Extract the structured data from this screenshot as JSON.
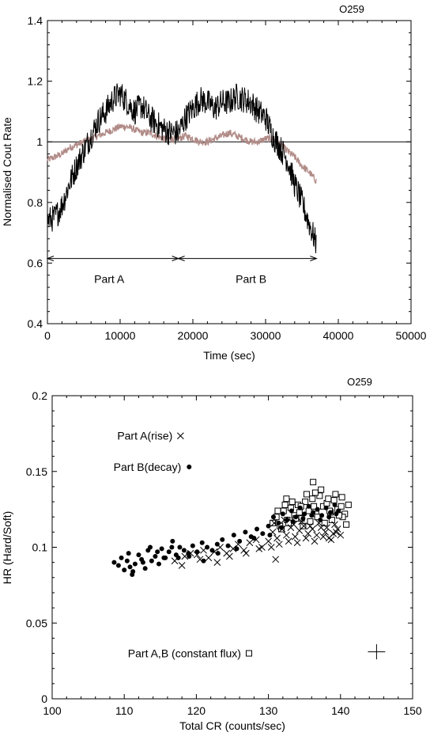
{
  "chart_data": [
    {
      "type": "line",
      "label": "O259",
      "xlabel": "Time (sec)",
      "ylabel": "Normalised Cout Rate",
      "xlim": [
        0,
        50000
      ],
      "ylim": [
        0.4,
        1.4
      ],
      "xticks": [
        0,
        10000,
        20000,
        30000,
        40000,
        50000
      ],
      "yticks": [
        0.4,
        0.6,
        0.8,
        1,
        1.2,
        1.4
      ],
      "xtick_labels": [
        "0",
        "10000",
        "20000",
        "30000",
        "40000",
        "50000"
      ],
      "ytick_labels": [
        "0.4",
        "0.6",
        "0.8",
        "1",
        "1.2",
        "1.4"
      ],
      "reference_line": 1,
      "annotations": [
        {
          "text": "Part A",
          "x": 8500,
          "y": 0.535,
          "arrow_from": 0,
          "arrow_to": 18000,
          "arrow_y": 0.615
        },
        {
          "text": "Part B",
          "x": 28000,
          "y": 0.535,
          "arrow_from": 18000,
          "arrow_to": 37000,
          "arrow_y": 0.615
        }
      ],
      "series": [
        {
          "color": "#000000",
          "x": [
            0,
            1000,
            2000,
            3000,
            4000,
            5000,
            6000,
            7000,
            8000,
            9000,
            10000,
            11000,
            12000,
            13000,
            14000,
            15000,
            16000,
            17000,
            18000,
            19000,
            20000,
            21000,
            22000,
            23000,
            24000,
            25000,
            26000,
            27000,
            28000,
            29000,
            30000,
            31000,
            32000,
            33000,
            34000,
            35000,
            36000,
            37000
          ],
          "values": [
            0.74,
            0.75,
            0.79,
            0.86,
            0.92,
            0.97,
            1.02,
            1.07,
            1.1,
            1.14,
            1.16,
            1.13,
            1.1,
            1.12,
            1.08,
            1.06,
            1.04,
            1.03,
            1.03,
            1.08,
            1.11,
            1.14,
            1.13,
            1.11,
            1.13,
            1.13,
            1.15,
            1.14,
            1.13,
            1.1,
            1.08,
            1.02,
            0.98,
            0.94,
            0.86,
            0.8,
            0.73,
            0.66
          ]
        },
        {
          "color": "#b08a86",
          "x": [
            0,
            1000,
            2000,
            3000,
            4000,
            5000,
            6000,
            7000,
            8000,
            9000,
            10000,
            11000,
            12000,
            13000,
            14000,
            15000,
            16000,
            17000,
            18000,
            19000,
            20000,
            21000,
            22000,
            23000,
            24000,
            25000,
            26000,
            27000,
            28000,
            29000,
            30000,
            31000,
            32000,
            33000,
            34000,
            35000,
            36000,
            37000
          ],
          "values": [
            0.94,
            0.95,
            0.96,
            0.98,
            0.99,
            1.0,
            1.01,
            1.02,
            1.03,
            1.04,
            1.05,
            1.05,
            1.04,
            1.03,
            1.03,
            1.02,
            1.01,
            1.01,
            1.01,
            1.02,
            1.01,
            1.0,
            1.0,
            1.01,
            1.02,
            1.03,
            1.02,
            1.01,
            1.0,
            1.0,
            1.01,
            1.01,
            0.99,
            0.97,
            0.95,
            0.92,
            0.9,
            0.87
          ]
        }
      ]
    },
    {
      "type": "scatter",
      "label": "O259",
      "xlabel": "Total CR (counts/sec)",
      "ylabel": "HR (Hard/Soft)",
      "xlim": [
        100,
        150
      ],
      "ylim": [
        0,
        0.2
      ],
      "xticks": [
        100,
        110,
        120,
        130,
        140,
        150
      ],
      "yticks": [
        0,
        0.05,
        0.1,
        0.15,
        0.2
      ],
      "xtick_labels": [
        "100",
        "110",
        "120",
        "130",
        "140",
        "150"
      ],
      "ytick_labels": [
        "0",
        "0.05",
        "0.1",
        "0.15",
        "0.2"
      ],
      "error_bar": {
        "x": 145,
        "y": 0.031,
        "dx": 1.2,
        "dy": 0.005
      },
      "series": [
        {
          "name": "Part A(rise)",
          "marker": "x",
          "legend_x": 117.8,
          "legend_y": 0.1735,
          "x": [
            117.0,
            118.4,
            119.2,
            120.1,
            121.0,
            121.7,
            122.5,
            123.3,
            124.2,
            125.1,
            125.8,
            126.6,
            127.4,
            128.3,
            129.1,
            130.0,
            130.6,
            131.2,
            131.9,
            132.5,
            133.1,
            133.7,
            134.3,
            134.9,
            135.5,
            136.1,
            136.7,
            137.3,
            137.9,
            138.4,
            139.0,
            139.6,
            140.0,
            118.0,
            120.5,
            122.9,
            124.6,
            126.9,
            128.7,
            130.4,
            131.5,
            132.8,
            134.0,
            135.2,
            136.4,
            137.6,
            138.7,
            139.4,
            130.8,
            132.2,
            133.5,
            134.6,
            135.8,
            137.0,
            138.1,
            139.2,
            131.0
          ],
          "values": [
            0.091,
            0.094,
            0.096,
            0.095,
            0.098,
            0.093,
            0.097,
            0.1,
            0.096,
            0.099,
            0.102,
            0.098,
            0.103,
            0.105,
            0.1,
            0.104,
            0.11,
            0.106,
            0.112,
            0.108,
            0.113,
            0.107,
            0.111,
            0.114,
            0.109,
            0.112,
            0.108,
            0.113,
            0.11,
            0.106,
            0.109,
            0.112,
            0.108,
            0.088,
            0.092,
            0.09,
            0.094,
            0.096,
            0.099,
            0.1,
            0.102,
            0.104,
            0.103,
            0.106,
            0.104,
            0.107,
            0.105,
            0.11,
            0.116,
            0.118,
            0.115,
            0.117,
            0.114,
            0.116,
            0.113,
            0.115,
            0.092
          ]
        },
        {
          "name": "Part B(decay)",
          "marker": "filled-circle",
          "legend_x": 119.0,
          "legend_y": 0.153,
          "x": [
            108.6,
            109.2,
            109.6,
            110.0,
            110.4,
            110.8,
            111.1,
            111.5,
            112.0,
            112.4,
            112.9,
            113.3,
            113.8,
            114.3,
            114.8,
            115.2,
            115.7,
            116.2,
            116.7,
            117.2,
            117.7,
            118.3,
            118.9,
            119.5,
            120.1,
            120.8,
            121.5,
            122.2,
            122.9,
            123.6,
            124.4,
            125.2,
            126.0,
            126.8,
            127.6,
            128.4,
            129.2,
            130.0,
            130.7,
            131.4,
            132.0,
            132.6,
            133.2,
            133.8,
            134.4,
            135.0,
            135.6,
            136.2,
            136.8,
            137.4,
            138.0,
            138.6,
            139.2,
            139.7,
            110.6,
            111.2,
            112.6,
            113.6,
            114.6,
            115.5,
            116.6,
            117.5,
            119.0,
            121.0,
            123.0,
            125.6,
            128.0,
            130.2,
            131.8,
            133.4,
            134.8,
            136.0,
            137.2,
            138.4,
            139.4
          ],
          "values": [
            0.09,
            0.088,
            0.093,
            0.085,
            0.091,
            0.087,
            0.082,
            0.089,
            0.095,
            0.092,
            0.086,
            0.098,
            0.091,
            0.094,
            0.089,
            0.099,
            0.093,
            0.097,
            0.104,
            0.095,
            0.1,
            0.098,
            0.096,
            0.101,
            0.097,
            0.103,
            0.1,
            0.098,
            0.102,
            0.105,
            0.101,
            0.108,
            0.104,
            0.11,
            0.107,
            0.112,
            0.109,
            0.114,
            0.12,
            0.116,
            0.122,
            0.118,
            0.124,
            0.12,
            0.126,
            0.122,
            0.127,
            0.123,
            0.125,
            0.121,
            0.126,
            0.123,
            0.128,
            0.124,
            0.096,
            0.084,
            0.09,
            0.1,
            0.097,
            0.093,
            0.1,
            0.093,
            0.094,
            0.091,
            0.096,
            0.099,
            0.106,
            0.108,
            0.113,
            0.117,
            0.119,
            0.121,
            0.118,
            0.12,
            0.122
          ]
        },
        {
          "name": "Part A,B (constant flux)",
          "marker": "open-square",
          "legend_x": 127.3,
          "legend_y": 0.03,
          "x": [
            130.6,
            131.1,
            131.6,
            132.1,
            132.6,
            133.1,
            133.6,
            134.1,
            134.6,
            135.1,
            135.6,
            136.1,
            136.6,
            137.1,
            137.6,
            138.1,
            138.6,
            139.1,
            139.6,
            140.1,
            140.6,
            141.1,
            131.3,
            132.3,
            133.3,
            134.3,
            135.3,
            136.3,
            137.3,
            138.3,
            139.3,
            140.3,
            131.8,
            132.8,
            133.8,
            134.8,
            135.8,
            136.8,
            137.8,
            138.8,
            139.8,
            140.8,
            132.5,
            134.5,
            136.5,
            138.5,
            140.2,
            136.2
          ],
          "values": [
            0.116,
            0.12,
            0.114,
            0.124,
            0.118,
            0.126,
            0.121,
            0.128,
            0.119,
            0.13,
            0.124,
            0.132,
            0.122,
            0.134,
            0.127,
            0.129,
            0.123,
            0.131,
            0.125,
            0.127,
            0.122,
            0.128,
            0.124,
            0.128,
            0.13,
            0.123,
            0.135,
            0.127,
            0.138,
            0.132,
            0.135,
            0.12,
            0.112,
            0.116,
            0.119,
            0.114,
            0.117,
            0.12,
            0.116,
            0.118,
            0.121,
            0.115,
            0.132,
            0.127,
            0.136,
            0.124,
            0.133,
            0.143
          ]
        }
      ]
    }
  ]
}
